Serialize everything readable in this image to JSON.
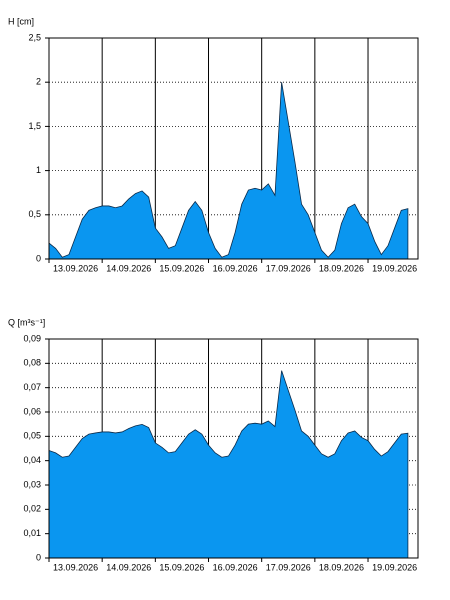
{
  "chart_data": [
    {
      "type": "area",
      "ylabel": "H [cm]",
      "color": "#0a96f0",
      "edgecolor": "#0a2a4a",
      "grid": true,
      "xlim": [
        0,
        6.94
      ],
      "ylim": [
        0,
        2.5
      ],
      "xticks": [
        {
          "value": 0,
          "label": "13.09.2026"
        },
        {
          "value": 1,
          "label": "14.09.2026"
        },
        {
          "value": 2,
          "label": "15.09.2026"
        },
        {
          "value": 3,
          "label": "16.09.2026"
        },
        {
          "value": 4,
          "label": "17.09.2026"
        },
        {
          "value": 5,
          "label": "18.09.2026"
        },
        {
          "value": 6,
          "label": "19.09.2026"
        }
      ],
      "yticks": [
        0,
        {
          "value": 0.5,
          "label": "0,5"
        },
        1,
        {
          "value": 1.5,
          "label": "1,5"
        },
        2,
        {
          "value": 2.5,
          "label": "2,5"
        }
      ],
      "x": [
        0,
        0.125,
        0.25,
        0.375,
        0.5,
        0.625,
        0.75,
        0.875,
        1,
        1.125,
        1.25,
        1.375,
        1.5,
        1.625,
        1.75,
        1.875,
        2,
        2.125,
        2.25,
        2.375,
        2.5,
        2.625,
        2.75,
        2.875,
        3,
        3.125,
        3.25,
        3.375,
        3.5,
        3.625,
        3.75,
        3.875,
        4,
        4.125,
        4.25,
        4.375,
        4.5,
        4.625,
        4.75,
        4.875,
        5,
        5.125,
        5.25,
        5.375,
        5.5,
        5.625,
        5.75,
        5.875,
        6,
        6.125,
        6.25,
        6.375,
        6.5,
        6.625,
        6.75
      ],
      "values": [
        0.18,
        0.12,
        0.02,
        0.05,
        0.25,
        0.45,
        0.55,
        0.58,
        0.6,
        0.6,
        0.58,
        0.6,
        0.68,
        0.74,
        0.77,
        0.7,
        0.35,
        0.25,
        0.12,
        0.15,
        0.35,
        0.55,
        0.65,
        0.55,
        0.3,
        0.12,
        0.02,
        0.05,
        0.3,
        0.62,
        0.78,
        0.8,
        0.78,
        0.85,
        0.72,
        2.0,
        1.55,
        1.1,
        0.62,
        0.5,
        0.3,
        0.1,
        0.02,
        0.1,
        0.4,
        0.58,
        0.62,
        0.48,
        0.4,
        0.2,
        0.05,
        0.15,
        0.35,
        0.55,
        0.57
      ]
    },
    {
      "type": "area",
      "ylabel": "Q [m³s⁻¹]",
      "color": "#0a96f0",
      "edgecolor": "#0a2a4a",
      "grid": true,
      "xlim": [
        0,
        6.94
      ],
      "ylim": [
        0,
        0.09
      ],
      "xticks": [
        {
          "value": 0,
          "label": "13.09.2026"
        },
        {
          "value": 1,
          "label": "14.09.2026"
        },
        {
          "value": 2,
          "label": "15.09.2026"
        },
        {
          "value": 3,
          "label": "16.09.2026"
        },
        {
          "value": 4,
          "label": "17.09.2026"
        },
        {
          "value": 5,
          "label": "18.09.2026"
        },
        {
          "value": 6,
          "label": "19.09.2026"
        }
      ],
      "yticks": [
        0,
        {
          "value": 0.01,
          "label": "0,01"
        },
        {
          "value": 0.02,
          "label": "0,02"
        },
        {
          "value": 0.03,
          "label": "0,03"
        },
        {
          "value": 0.04,
          "label": "0,04"
        },
        {
          "value": 0.05,
          "label": "0,05"
        },
        {
          "value": 0.06,
          "label": "0,06"
        },
        {
          "value": 0.07,
          "label": "0,07"
        },
        {
          "value": 0.08,
          "label": "0,08"
        },
        {
          "value": 0.09,
          "label": "0,09"
        }
      ],
      "x": [
        0,
        0.125,
        0.25,
        0.375,
        0.5,
        0.625,
        0.75,
        0.875,
        1,
        1.125,
        1.25,
        1.375,
        1.5,
        1.625,
        1.75,
        1.875,
        2,
        2.125,
        2.25,
        2.375,
        2.5,
        2.625,
        2.75,
        2.875,
        3,
        3.125,
        3.25,
        3.375,
        3.5,
        3.625,
        3.75,
        3.875,
        4,
        4.125,
        4.25,
        4.375,
        4.5,
        4.625,
        4.75,
        4.875,
        5,
        5.125,
        5.25,
        5.375,
        5.5,
        5.625,
        5.75,
        5.875,
        6,
        6.125,
        6.25,
        6.375,
        6.5,
        6.625,
        6.75
      ],
      "values": [
        0.0442,
        0.0432,
        0.0414,
        0.0419,
        0.0455,
        0.0491,
        0.0509,
        0.0514,
        0.0518,
        0.0518,
        0.0514,
        0.0518,
        0.0532,
        0.0543,
        0.0549,
        0.0536,
        0.0473,
        0.0455,
        0.0432,
        0.0437,
        0.0473,
        0.0509,
        0.0527,
        0.0509,
        0.0464,
        0.0432,
        0.0414,
        0.0419,
        0.0464,
        0.0522,
        0.055,
        0.0554,
        0.055,
        0.0563,
        0.054,
        0.077,
        0.0689,
        0.0608,
        0.0522,
        0.05,
        0.0464,
        0.0428,
        0.0414,
        0.0428,
        0.0482,
        0.0514,
        0.0522,
        0.0496,
        0.0482,
        0.0446,
        0.0419,
        0.0437,
        0.0473,
        0.0509,
        0.0513
      ]
    }
  ]
}
